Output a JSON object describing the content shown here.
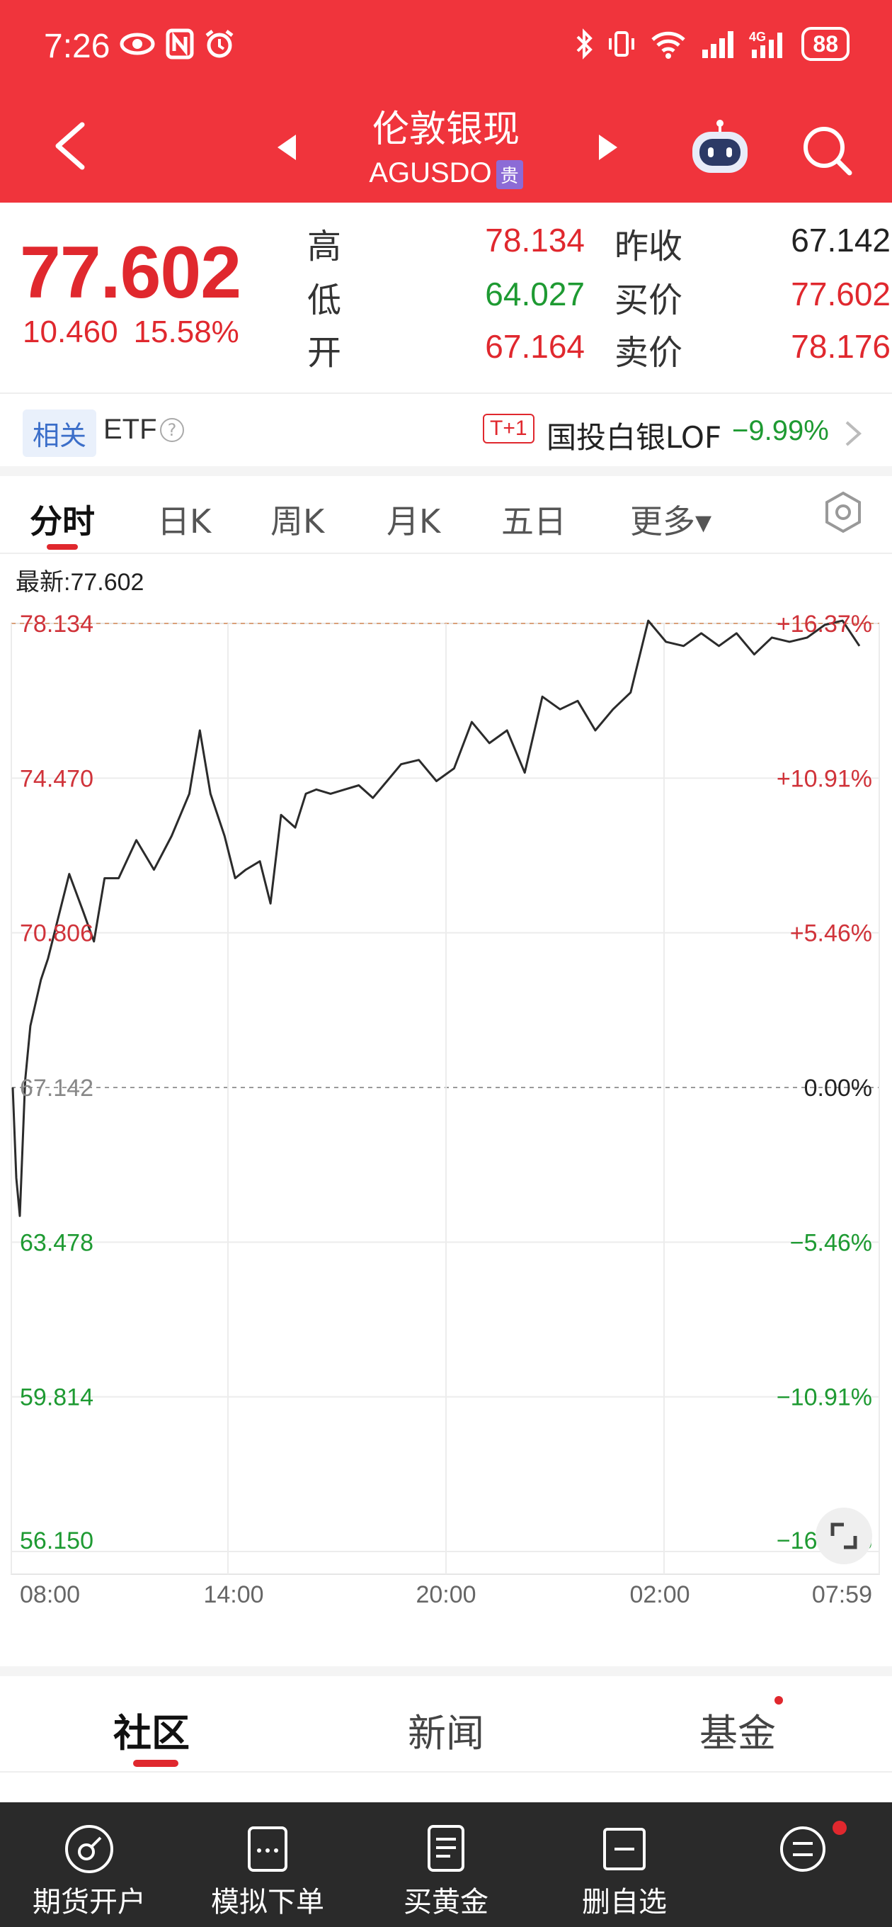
{
  "status_bar": {
    "time": "7:26",
    "battery": "88"
  },
  "header": {
    "title": "伦敦银现",
    "symbol": "AGUSDO",
    "tag": "贵"
  },
  "quote": {
    "price": "77.602",
    "change": "10.460",
    "change_pct": "15.58%",
    "high_label": "高",
    "high": "78.134",
    "low_label": "低",
    "low": "64.027",
    "open_label": "开",
    "open": "67.164",
    "prev_close_label": "昨收",
    "prev_close": "67.142",
    "bid_label": "买价",
    "bid": "77.602",
    "ask_label": "卖价",
    "ask": "78.176"
  },
  "etf": {
    "tag": "相关",
    "label": "ETF",
    "help": "?",
    "fund_badge": "T+1",
    "fund_name": "国投白银LOF",
    "fund_change": "−9.99%"
  },
  "tabs": [
    "分时",
    "日K",
    "周K",
    "月K",
    "五日",
    "更多▾"
  ],
  "chart_data": {
    "type": "line",
    "latest_label": "最新:77.602",
    "x_ticks": [
      "08:00",
      "14:00",
      "20:00",
      "02:00",
      "07:59"
    ],
    "y_ticks_left": [
      "78.134",
      "74.470",
      "70.806",
      "67.142",
      "63.478",
      "59.814",
      "56.150"
    ],
    "y_ticks_right": [
      "+16.37%",
      "+10.91%",
      "+5.46%",
      "0.00%",
      "−5.46%",
      "−10.91%",
      "−16.37%"
    ],
    "ylim": [
      56.15,
      78.134
    ],
    "baseline": 67.142,
    "x_hours": [
      0,
      0.1,
      0.2,
      0.35,
      0.5,
      0.8,
      1.0,
      1.3,
      1.6,
      2.0,
      2.3,
      2.6,
      3.0,
      3.5,
      4.0,
      4.5,
      5.0,
      5.3,
      5.6,
      6.0,
      6.3,
      6.6,
      7.0,
      7.3,
      7.6,
      8.0,
      8.3,
      8.6,
      9.0,
      9.4,
      9.8,
      10.2,
      10.6,
      11.0,
      11.5,
      12.0,
      12.5,
      13.0,
      13.5,
      14.0,
      14.5,
      15.0,
      15.5,
      16.0,
      16.5,
      17.0,
      17.5,
      18.0,
      18.5,
      19.0,
      19.5,
      20.0,
      20.5,
      21.0,
      21.5,
      22.0,
      22.5,
      23.0,
      23.5,
      23.98
    ],
    "values": [
      67.14,
      65.0,
      64.1,
      67.3,
      68.6,
      69.7,
      70.2,
      71.2,
      72.2,
      71.3,
      70.6,
      72.1,
      72.1,
      73.0,
      72.3,
      73.1,
      74.1,
      75.6,
      74.1,
      73.1,
      72.1,
      72.3,
      72.5,
      71.5,
      73.6,
      73.3,
      74.1,
      74.2,
      74.1,
      74.2,
      74.3,
      74.0,
      74.4,
      74.8,
      74.9,
      74.4,
      74.7,
      75.8,
      75.3,
      75.6,
      74.6,
      76.4,
      76.1,
      76.3,
      75.6,
      76.1,
      76.5,
      78.2,
      77.7,
      77.6,
      77.9,
      77.6,
      77.9,
      77.4,
      77.8,
      77.7,
      77.8,
      78.1,
      78.2,
      77.6
    ]
  },
  "section_tabs": [
    "社区",
    "新闻",
    "基金"
  ],
  "bottom_bar": [
    "期货开户",
    "模拟下单",
    "买黄金",
    "删自选",
    ""
  ],
  "colors": {
    "brand": "#f0343c",
    "up": "#e0282e",
    "down": "#1e9a32"
  }
}
